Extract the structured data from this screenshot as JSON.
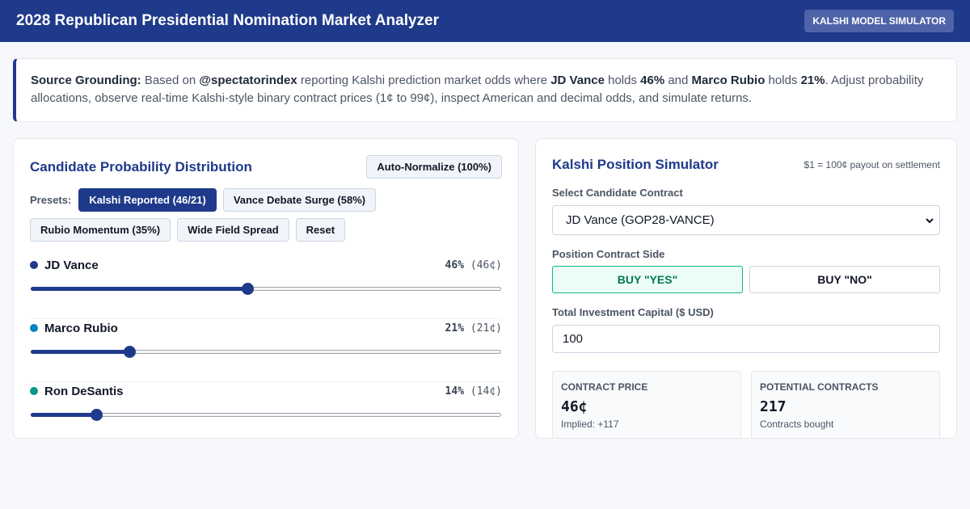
{
  "header": {
    "title": "2028 Republican Presidential Nomination Market Analyzer",
    "badge": "KALSHI MODEL SIMULATOR"
  },
  "grounding": {
    "label": "Source Grounding:",
    "t1": " Based on ",
    "source": "@spectatorindex",
    "t2": " reporting Kalshi prediction market odds where ",
    "cand1": "JD Vance",
    "t3": " holds ",
    "pct1": "46%",
    "t4": " and ",
    "cand2": "Marco Rubio",
    "t5": " holds ",
    "pct2": "21%",
    "t6": ". Adjust probability allocations, observe real-time Kalshi-style binary contract prices (1¢ to 99¢), inspect American and decimal odds, and simulate returns."
  },
  "distribution": {
    "title": "Candidate Probability Distribution",
    "normalize_label": "Auto-Normalize (100%)",
    "presets_label": "Presets:",
    "presets": [
      {
        "label": "Kalshi Reported (46/21)",
        "active": true
      },
      {
        "label": "Vance Debate Surge (58%)",
        "active": false
      },
      {
        "label": "Rubio Momentum (35%)",
        "active": false
      },
      {
        "label": "Wide Field Spread",
        "active": false
      },
      {
        "label": "Reset",
        "active": false
      }
    ],
    "candidates": [
      {
        "name": "JD Vance",
        "pct_text": "46%",
        "price_text": "(46¢)",
        "value": 46,
        "color": "#1f3a8a"
      },
      {
        "name": "Marco Rubio",
        "pct_text": "21%",
        "price_text": "(21¢)",
        "value": 21,
        "color": "#0284c7"
      },
      {
        "name": "Ron DeSantis",
        "pct_text": "14%",
        "price_text": "(14¢)",
        "value": 14,
        "color": "#0d9488"
      }
    ]
  },
  "simulator": {
    "title": "Kalshi Position Simulator",
    "note": "$1 = 100¢ payout on settlement",
    "contract_label": "Select Candidate Contract",
    "contract_value": "JD Vance (GOP28-VANCE)",
    "side_label": "Position Contract Side",
    "yes_label": "BUY \"YES\"",
    "no_label": "BUY \"NO\"",
    "capital_label": "Total Investment Capital ($ USD)",
    "capital_value": "100",
    "stats": [
      {
        "label": "CONTRACT PRICE",
        "value": "46¢",
        "sub": "Implied: +117"
      },
      {
        "label": "POTENTIAL CONTRACTS",
        "value": "217",
        "sub": "Contracts bought"
      }
    ]
  }
}
